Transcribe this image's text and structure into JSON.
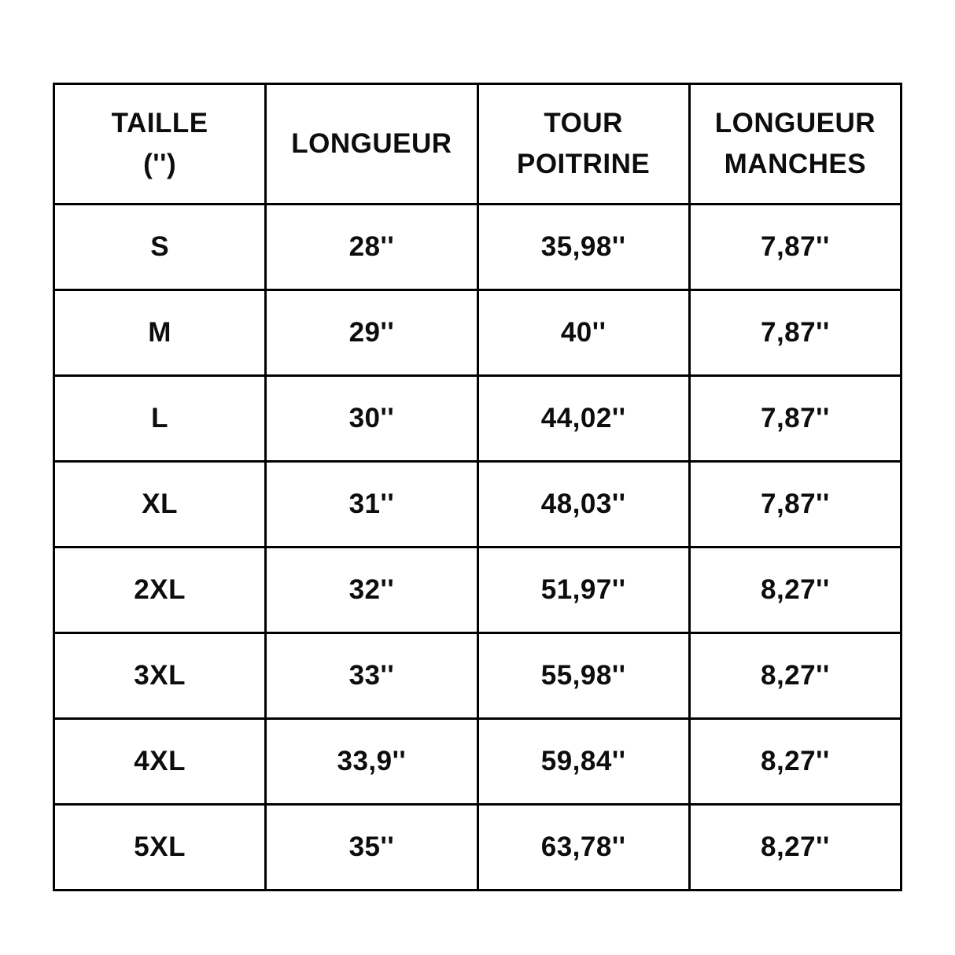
{
  "page": {
    "background_color": "#ffffff",
    "text_color": "#0d0d0d",
    "border_color": "#000000"
  },
  "chart_data": {
    "type": "table",
    "title": "",
    "columns": [
      "TAILLE\n('')",
      "LONGUEUR",
      "TOUR\nPOITRINE",
      "LONGUEUR\nMANCHES"
    ],
    "rows": [
      [
        "S",
        "28''",
        "35,98''",
        "7,87''"
      ],
      [
        "M",
        "29''",
        "40''",
        "7,87''"
      ],
      [
        "L",
        "30''",
        "44,02''",
        "7,87''"
      ],
      [
        "XL",
        "31''",
        "48,03''",
        "7,87''"
      ],
      [
        "2XL",
        "32''",
        "51,97''",
        "8,27''"
      ],
      [
        "3XL",
        "33''",
        "55,98''",
        "8,27''"
      ],
      [
        "4XL",
        "33,9''",
        "59,84''",
        "8,27''"
      ],
      [
        "5XL",
        "35''",
        "63,78''",
        "8,27''"
      ]
    ]
  }
}
